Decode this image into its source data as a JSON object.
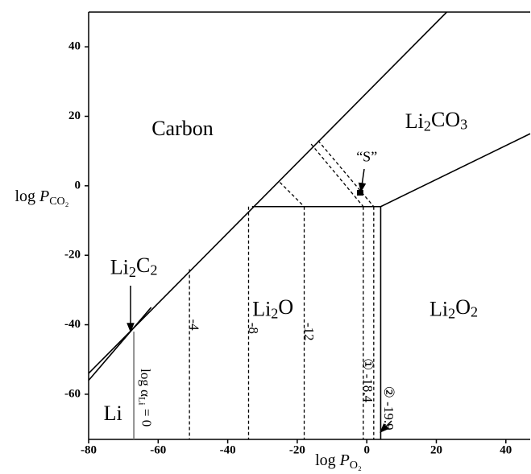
{
  "chart_data": {
    "type": "line",
    "xlim": [
      -80,
      47
    ],
    "ylim": [
      -73,
      50
    ],
    "xticks": [
      -80,
      -60,
      -40,
      -20,
      0,
      20,
      40
    ],
    "yticks": [
      -60,
      -40,
      -20,
      0,
      20,
      40
    ],
    "x_label": [
      {
        "text": "log ",
        "style": "normal"
      },
      {
        "text": "P",
        "style": "italic"
      },
      {
        "text": "O₂",
        "style": "sub"
      }
    ],
    "y_label": [
      {
        "text": "log ",
        "style": "normal"
      },
      {
        "text": "P",
        "style": "italic"
      },
      {
        "text": "CO₂",
        "style": "sub"
      }
    ],
    "series": [
      {
        "color": "#000",
        "dash": false,
        "x": [
          -80,
          23
        ],
        "y": [
          -54,
          50
        ]
      },
      {
        "color": "#000",
        "dash": false,
        "x": [
          -80,
          -62
        ],
        "y": [
          -56,
          -35
        ]
      },
      {
        "color": "#000",
        "dash": false,
        "x": [
          -33,
          4
        ],
        "y": [
          -6,
          -6
        ]
      },
      {
        "color": "#000",
        "dash": false,
        "x": [
          4,
          47
        ],
        "y": [
          -6,
          15
        ]
      },
      {
        "color": "#000",
        "dash": false,
        "x": [
          4,
          4
        ],
        "y": [
          -6,
          -73
        ]
      },
      {
        "color": "#777",
        "dash": false,
        "x": [
          -67,
          -67
        ],
        "y": [
          -42,
          -73
        ]
      },
      {
        "color": "#000",
        "dash": true,
        "x": [
          -51,
          -51
        ],
        "y": [
          -24,
          -73
        ]
      },
      {
        "color": "#000",
        "dash": true,
        "x": [
          -34,
          -34
        ],
        "y": [
          -6,
          -73
        ]
      },
      {
        "color": "#000",
        "dash": true,
        "x": [
          -18,
          -18
        ],
        "y": [
          -6,
          -73
        ]
      },
      {
        "color": "#000",
        "dash": true,
        "x": [
          -1,
          -1
        ],
        "y": [
          -6,
          -73
        ]
      },
      {
        "color": "#000",
        "dash": true,
        "x": [
          2,
          2
        ],
        "y": [
          -6,
          -73
        ]
      },
      {
        "color": "#000",
        "dash": true,
        "x": [
          -25,
          -18
        ],
        "y": [
          1,
          -6
        ]
      },
      {
        "color": "#000",
        "dash": true,
        "x": [
          -16,
          -1
        ],
        "y": [
          12,
          -6
        ]
      },
      {
        "color": "#000",
        "dash": true,
        "x": [
          -14,
          2
        ],
        "y": [
          13,
          -6
        ]
      }
    ],
    "annotations": [
      {
        "x": -53,
        "y": 16,
        "size": 26,
        "rotated": false,
        "parts": [
          {
            "text": "Carbon",
            "style": "normal"
          }
        ]
      },
      {
        "x": 20,
        "y": 18,
        "size": 26,
        "rotated": false,
        "parts": [
          {
            "text": "Li",
            "style": "normal"
          },
          {
            "text": "2",
            "style": "sub"
          },
          {
            "text": "CO",
            "style": "normal"
          },
          {
            "text": "3",
            "style": "sub"
          }
        ]
      },
      {
        "x": -27,
        "y": -36,
        "size": 26,
        "rotated": false,
        "parts": [
          {
            "text": "Li",
            "style": "normal"
          },
          {
            "text": "2",
            "style": "sub"
          },
          {
            "text": "O",
            "style": "normal"
          }
        ]
      },
      {
        "x": 25,
        "y": -36,
        "size": 26,
        "rotated": false,
        "parts": [
          {
            "text": "Li",
            "style": "normal"
          },
          {
            "text": "2",
            "style": "sub"
          },
          {
            "text": "O",
            "style": "normal"
          },
          {
            "text": "2",
            "style": "sub"
          }
        ]
      },
      {
        "x": -67,
        "y": -24,
        "size": 26,
        "rotated": false,
        "parts": [
          {
            "text": "Li",
            "style": "normal"
          },
          {
            "text": "2",
            "style": "sub"
          },
          {
            "text": "C",
            "style": "normal"
          },
          {
            "text": "2",
            "style": "sub"
          }
        ]
      },
      {
        "x": -73,
        "y": -66,
        "size": 26,
        "rotated": false,
        "parts": [
          {
            "text": "Li",
            "style": "normal"
          }
        ]
      },
      {
        "x": 0,
        "y": 8,
        "size": 18,
        "rotated": false,
        "parts": [
          {
            "text": "“S”",
            "style": "normal"
          }
        ]
      },
      {
        "x": -50,
        "y": -40,
        "size": 17,
        "rotated": true,
        "parts": [
          {
            "text": "-4",
            "style": "normal"
          }
        ]
      },
      {
        "x": -33,
        "y": -41,
        "size": 17,
        "rotated": true,
        "parts": [
          {
            "text": "-8",
            "style": "normal"
          }
        ]
      },
      {
        "x": -17,
        "y": -42,
        "size": 17,
        "rotated": true,
        "parts": [
          {
            "text": "-12",
            "style": "normal"
          }
        ]
      },
      {
        "x": 0,
        "y": -56,
        "size": 17,
        "rotated": true,
        "parts": [
          {
            "text": "① -18.4",
            "style": "normal"
          }
        ]
      },
      {
        "x": 6,
        "y": -64,
        "size": 17,
        "rotated": true,
        "parts": [
          {
            "text": "② -19.9",
            "style": "normal"
          }
        ]
      },
      {
        "x": -64,
        "y": -61,
        "size": 17,
        "rotated": true,
        "parts": [
          {
            "text": "log α",
            "style": "normal"
          },
          {
            "text": "Li",
            "style": "sub"
          },
          {
            "text": " = 0",
            "style": "normal"
          }
        ]
      }
    ]
  }
}
